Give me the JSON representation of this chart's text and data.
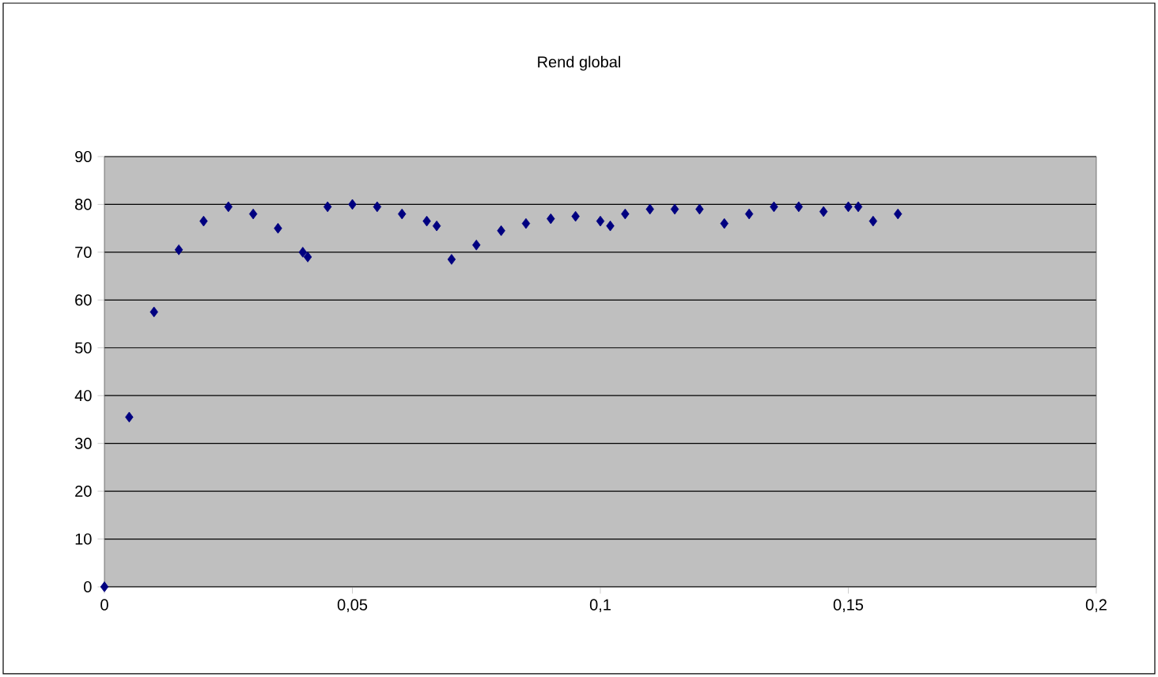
{
  "chart_data": {
    "type": "scatter",
    "title": "Rend global",
    "x": [
      0,
      0.005,
      0.01,
      0.015,
      0.02,
      0.025,
      0.03,
      0.035,
      0.04,
      0.041,
      0.045,
      0.05,
      0.055,
      0.06,
      0.065,
      0.067,
      0.07,
      0.075,
      0.08,
      0.085,
      0.09,
      0.095,
      0.1,
      0.102,
      0.105,
      0.11,
      0.115,
      0.12,
      0.125,
      0.13,
      0.135,
      0.14,
      0.145,
      0.15,
      0.152,
      0.155,
      0.16
    ],
    "values": [
      0,
      35.5,
      57.5,
      70.5,
      76.5,
      79.5,
      78,
      75,
      70,
      69,
      79.5,
      80,
      79.5,
      78,
      76.5,
      75.5,
      68.5,
      71.5,
      74.5,
      76,
      77,
      77.5,
      76.5,
      75.5,
      78,
      79,
      79,
      79,
      76,
      78,
      79.5,
      79.5,
      78.5,
      79.5,
      79.5,
      76.5,
      78
    ],
    "color": "#000080",
    "marker": "diamond",
    "grid": "y",
    "xlim": [
      0,
      0.2
    ],
    "xticks": [
      {
        "value": 0,
        "label": "0"
      },
      {
        "value": 0.05,
        "label": "0,05"
      },
      {
        "value": 0.1,
        "label": "0,1"
      },
      {
        "value": 0.15,
        "label": "0,15"
      },
      {
        "value": 0.2,
        "label": "0,2"
      }
    ],
    "ylim": [
      0,
      90
    ],
    "yticks": [
      0,
      10,
      20,
      30,
      40,
      50,
      60,
      70,
      80,
      90
    ]
  }
}
